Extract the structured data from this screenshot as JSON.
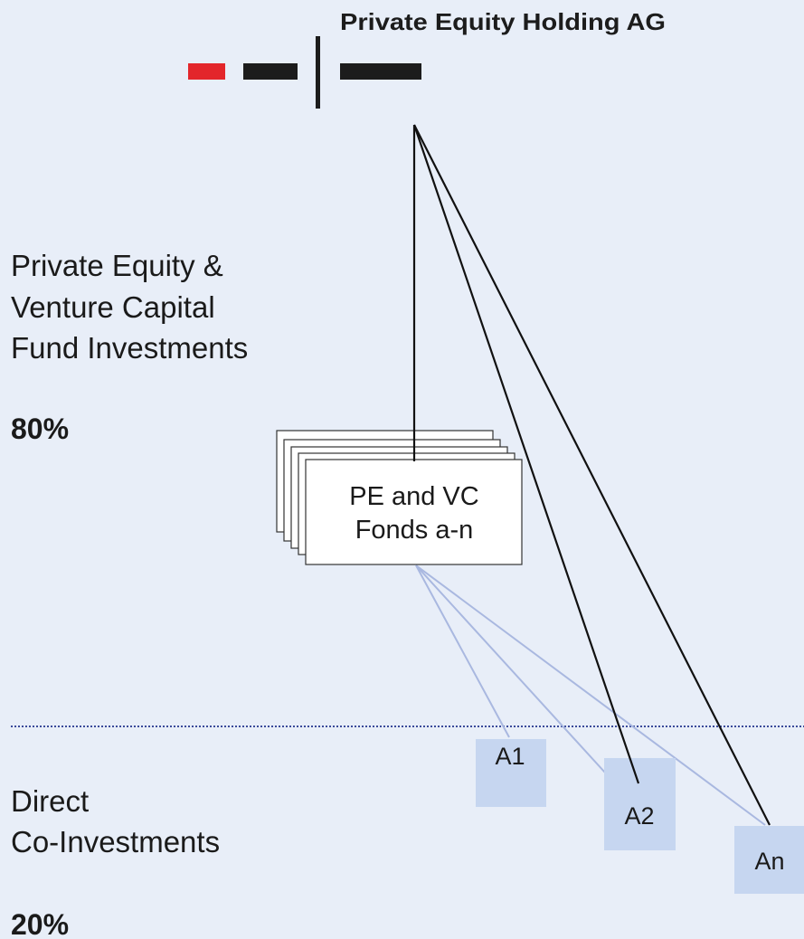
{
  "header": {
    "title": "Private Equity Holding AG"
  },
  "sections": [
    {
      "label_lines": [
        "Private Equity &",
        "Venture Capital",
        "Fund Investments"
      ],
      "share": "80%"
    },
    {
      "label_lines": [
        "Direct",
        "Co-Investments"
      ],
      "share": "20%"
    }
  ],
  "fund_box": {
    "label_lines": [
      "PE and VC",
      "Fonds a-n"
    ]
  },
  "nodes": [
    {
      "label": "A1"
    },
    {
      "label": "A2"
    },
    {
      "label": "An"
    }
  ]
}
